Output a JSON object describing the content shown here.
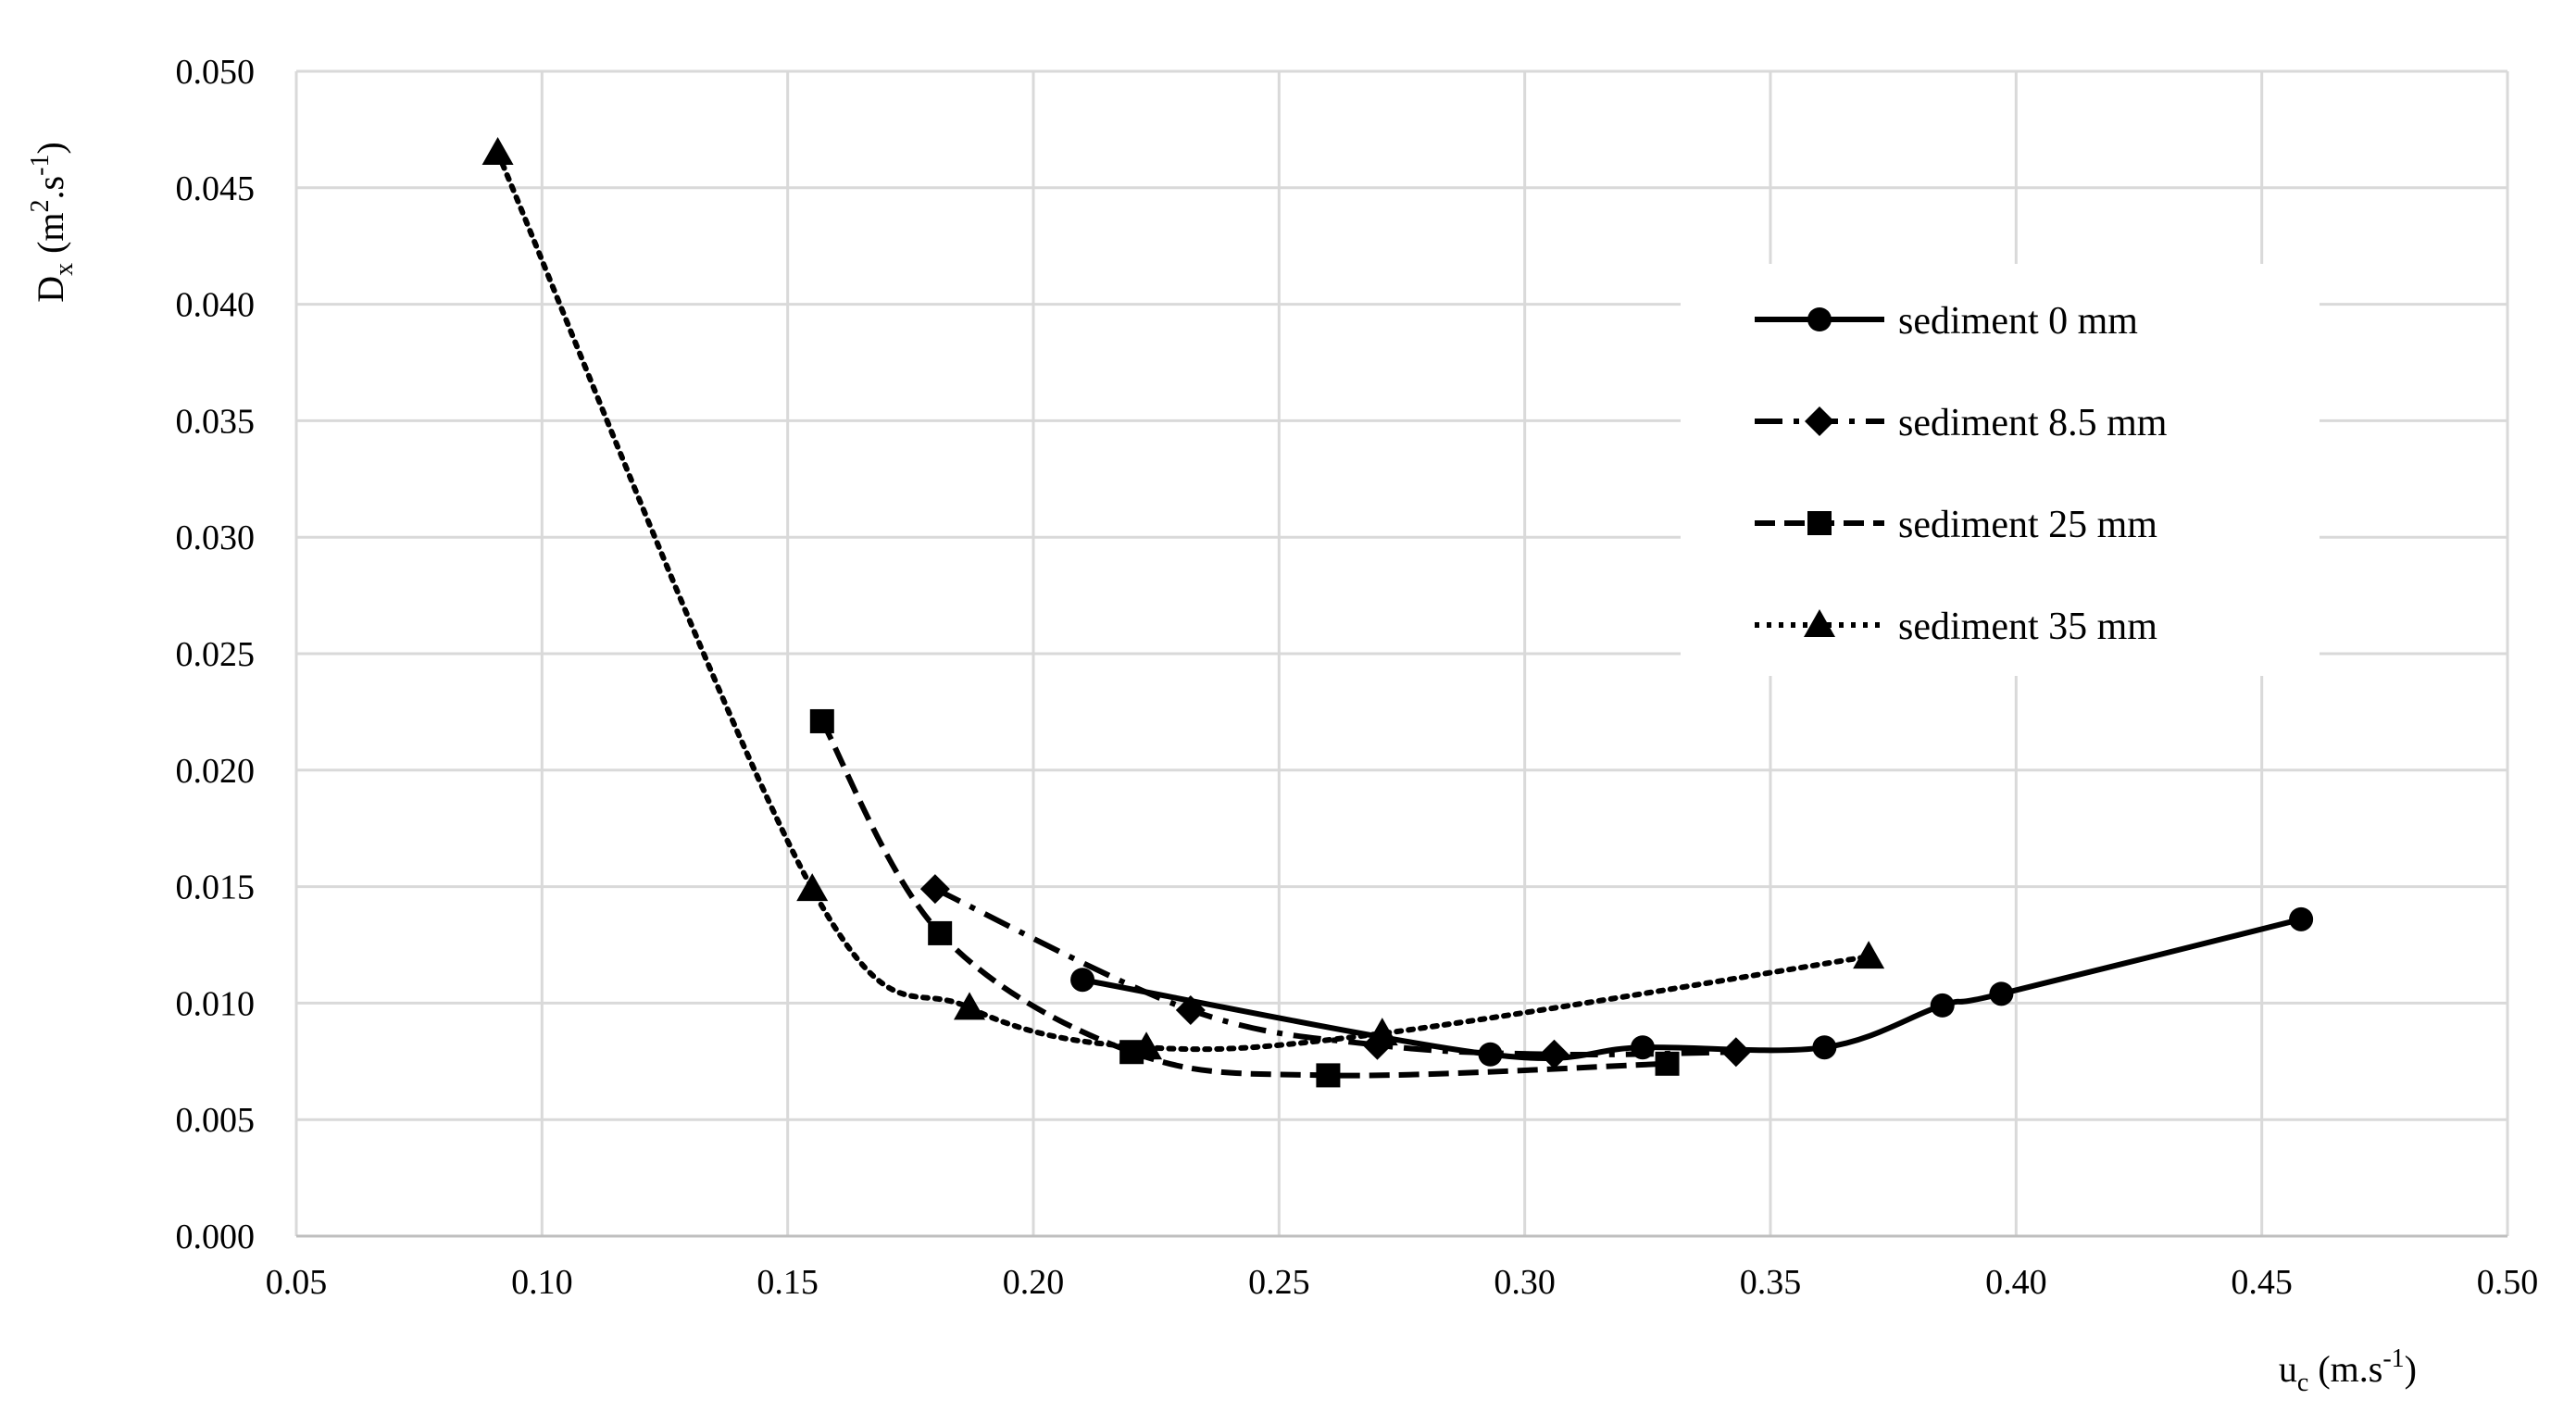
{
  "chart_data": {
    "type": "line",
    "title": "",
    "xlabel": {
      "base": "u",
      "sub": "c",
      "rest": " (m.s",
      "sup": "-1",
      "close": ")"
    },
    "ylabel": {
      "base": "D",
      "sub": "x",
      "rest1": " (m",
      "sup1": "2",
      "rest2": ".s",
      "sup2": "-1",
      "close": ")"
    },
    "xlim": [
      0.05,
      0.5
    ],
    "ylim": [
      0.0,
      0.05
    ],
    "xticks": [
      0.05,
      0.1,
      0.15,
      0.2,
      0.25,
      0.3,
      0.35,
      0.4,
      0.45,
      0.5
    ],
    "yticks": [
      0.0,
      0.005,
      0.01,
      0.015,
      0.02,
      0.025,
      0.03,
      0.035,
      0.04,
      0.045,
      0.05
    ],
    "xtick_labels": [
      "0.05",
      "0.10",
      "0.15",
      "0.20",
      "0.25",
      "0.30",
      "0.35",
      "0.40",
      "0.45",
      "0.50"
    ],
    "ytick_labels": [
      "0.000",
      "0.005",
      "0.010",
      "0.015",
      "0.020",
      "0.025",
      "0.030",
      "0.035",
      "0.040",
      "0.045",
      "0.050"
    ],
    "grid": true,
    "legend_position": "top-right",
    "series": [
      {
        "name": "sediment 0 mm",
        "marker": "circle",
        "line_style": "solid",
        "x": [
          0.21,
          0.293,
          0.324,
          0.361,
          0.385,
          0.397,
          0.458
        ],
        "y": [
          0.011,
          0.0078,
          0.0081,
          0.0081,
          0.0099,
          0.0104,
          0.0136
        ]
      },
      {
        "name": "sediment 8.5 mm",
        "marker": "diamond",
        "line_style": "dash-dot",
        "x": [
          0.18,
          0.232,
          0.27,
          0.306,
          0.343
        ],
        "y": [
          0.0149,
          0.0097,
          0.0082,
          0.0078,
          0.0079
        ]
      },
      {
        "name": "sediment 25 mm",
        "marker": "square",
        "line_style": "dashed",
        "x": [
          0.157,
          0.181,
          0.22,
          0.26,
          0.329
        ],
        "y": [
          0.0221,
          0.013,
          0.0079,
          0.0069,
          0.0074
        ]
      },
      {
        "name": "sediment 35 mm",
        "marker": "triangle",
        "line_style": "dotted",
        "x": [
          0.091,
          0.155,
          0.187,
          0.223,
          0.271,
          0.37
        ],
        "y": [
          0.0465,
          0.0149,
          0.0098,
          0.0081,
          0.0087,
          0.012
        ]
      }
    ]
  }
}
